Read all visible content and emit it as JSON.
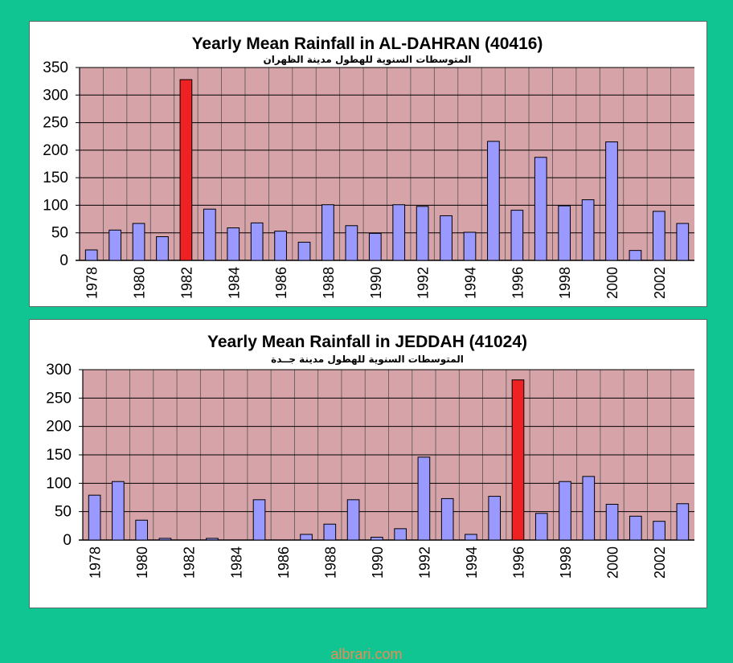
{
  "chart_data": [
    {
      "type": "bar",
      "title": "Yearly Mean Rainfall in AL-DAHRAN (40416)",
      "subtitle": "المتوسطات السنوية للهطول مدينة الظهران",
      "categories": [
        "1978",
        "1979",
        "1980",
        "1981",
        "1982",
        "1983",
        "1984",
        "1985",
        "1986",
        "1987",
        "1988",
        "1989",
        "1990",
        "1991",
        "1992",
        "1993",
        "1994",
        "1995",
        "1996",
        "1997",
        "1998",
        "1999",
        "2000",
        "2001",
        "2002",
        "2003"
      ],
      "x_tick_labels": [
        "1978",
        "1980",
        "1982",
        "1984",
        "1986",
        "1988",
        "1990",
        "1992",
        "1994",
        "1996",
        "1998",
        "2000",
        "2002"
      ],
      "values": [
        19,
        55,
        67,
        43,
        328,
        93,
        59,
        68,
        53,
        33,
        101,
        63,
        49,
        101,
        98,
        81,
        51,
        216,
        91,
        187,
        99,
        110,
        215,
        18,
        89,
        67
      ],
      "highlight_index": 4,
      "ylim": [
        0,
        350
      ],
      "yticks": [
        0,
        50,
        100,
        150,
        200,
        250,
        300,
        350
      ],
      "grid": true,
      "colors": {
        "bar": "#9999ff",
        "highlight": "#ee2222",
        "plot_bg": "#d6a3a8"
      }
    },
    {
      "type": "bar",
      "title": "Yearly Mean Rainfall in JEDDAH (41024)",
      "subtitle": "المتوسطات السنوية للهطول مدينة جــدة",
      "categories": [
        "1978",
        "1979",
        "1980",
        "1981",
        "1982",
        "1983",
        "1984",
        "1985",
        "1986",
        "1987",
        "1988",
        "1989",
        "1990",
        "1991",
        "1992",
        "1993",
        "1994",
        "1995",
        "1996",
        "1997",
        "1998",
        "1999",
        "2000",
        "2001",
        "2002",
        "2003"
      ],
      "x_tick_labels": [
        "1978",
        "1980",
        "1982",
        "1984",
        "1986",
        "1988",
        "1990",
        "1992",
        "1994",
        "1996",
        "1998",
        "2000",
        "2002"
      ],
      "values": [
        79,
        103,
        35,
        3,
        0,
        3,
        0,
        71,
        0,
        10,
        28,
        71,
        5,
        20,
        146,
        73,
        10,
        77,
        282,
        47,
        103,
        112,
        63,
        42,
        33,
        64
      ],
      "highlight_index": 18,
      "ylim": [
        0,
        300
      ],
      "yticks": [
        0,
        50,
        100,
        150,
        200,
        250,
        300
      ],
      "grid": true,
      "colors": {
        "bar": "#9999ff",
        "highlight": "#ee2222",
        "plot_bg": "#d6a3a8"
      }
    }
  ],
  "watermark": "albrari.com"
}
